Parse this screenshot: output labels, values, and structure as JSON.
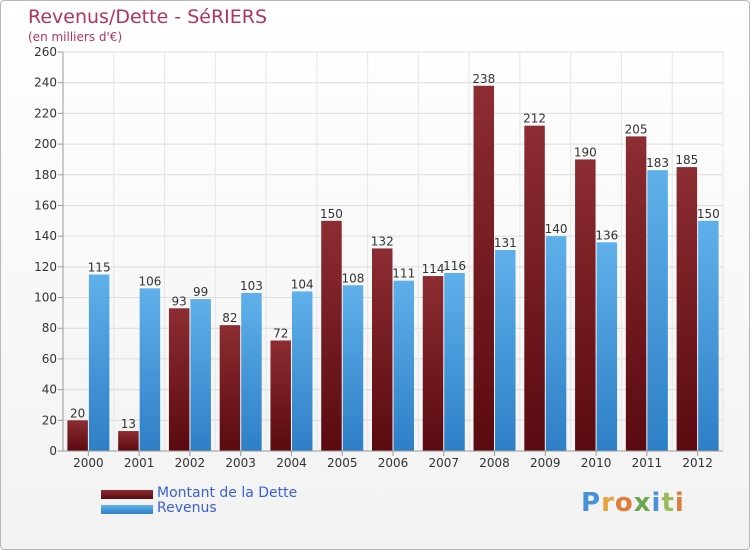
{
  "chart_data": {
    "type": "bar",
    "title": "Revenus/Dette - SéRIERS",
    "subtitle": "(en milliers d'€)",
    "categories": [
      "2000",
      "2001",
      "2002",
      "2003",
      "2004",
      "2005",
      "2006",
      "2007",
      "2008",
      "2009",
      "2010",
      "2011",
      "2012"
    ],
    "series": [
      {
        "name": "Montant de la Dette",
        "color": "#7a1a1f",
        "values": [
          20,
          13,
          93,
          82,
          72,
          150,
          132,
          114,
          238,
          212,
          190,
          205,
          185
        ]
      },
      {
        "name": "Revenus",
        "color": "#4a9ee0",
        "values": [
          115,
          106,
          99,
          103,
          104,
          108,
          111,
          116,
          131,
          140,
          136,
          183,
          150
        ]
      }
    ],
    "ylim": [
      0,
      260
    ],
    "yticks": [
      0,
      20,
      40,
      60,
      80,
      100,
      120,
      140,
      160,
      180,
      200,
      220,
      240,
      260
    ],
    "grid": true,
    "legend_position": "bottom-left"
  },
  "branding": {
    "letters": [
      "P",
      "r",
      "o",
      "x",
      "i",
      "t",
      "i"
    ],
    "colors": [
      "#4a90d9",
      "#e8a33d",
      "#e07b39",
      "#6aa84f",
      "#4a90d9",
      "#9bbb59",
      "#e07b39"
    ]
  }
}
